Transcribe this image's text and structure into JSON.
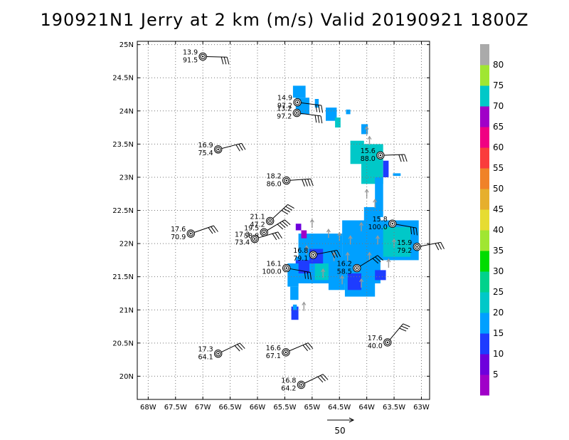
{
  "chart_data": {
    "type": "map",
    "title": "190921N1 Jerry at 2 km (m/s) Valid 20190921 1800Z",
    "x_axis": {
      "range": [
        -68.2,
        -62.85
      ],
      "ticks": [
        {
          "value": -68.0,
          "label": "68W"
        },
        {
          "value": -67.5,
          "label": "67.5W"
        },
        {
          "value": -67.0,
          "label": "67W"
        },
        {
          "value": -66.5,
          "label": "66.5W"
        },
        {
          "value": -66.0,
          "label": "66W"
        },
        {
          "value": -65.5,
          "label": "65.5W"
        },
        {
          "value": -65.0,
          "label": "65W"
        },
        {
          "value": -64.5,
          "label": "64.5W"
        },
        {
          "value": -64.0,
          "label": "64W"
        },
        {
          "value": -63.5,
          "label": "63.5W"
        },
        {
          "value": -63.0,
          "label": "63W"
        }
      ]
    },
    "y_axis": {
      "range": [
        19.65,
        25.05
      ],
      "ticks": [
        {
          "value": 20.0,
          "label": "20N"
        },
        {
          "value": 20.5,
          "label": "20.5N"
        },
        {
          "value": 21.0,
          "label": "21N"
        },
        {
          "value": 21.5,
          "label": "21.5N"
        },
        {
          "value": 22.0,
          "label": "22N"
        },
        {
          "value": 22.5,
          "label": "22.5N"
        },
        {
          "value": 23.0,
          "label": "23N"
        },
        {
          "value": 23.5,
          "label": "23.5N"
        },
        {
          "value": 24.0,
          "label": "24N"
        },
        {
          "value": 24.5,
          "label": "24.5N"
        },
        {
          "value": 25.0,
          "label": "25N"
        }
      ]
    },
    "grid": true,
    "colorbar": {
      "placement": "right",
      "levels": [
        {
          "label": "5",
          "color": "#a000c8"
        },
        {
          "label": "10",
          "color": "#6e00dc"
        },
        {
          "label": "15",
          "color": "#1e3cff"
        },
        {
          "label": "20",
          "color": "#00a0ff"
        },
        {
          "label": "25",
          "color": "#00c8c8"
        },
        {
          "label": "30",
          "color": "#00d28c"
        },
        {
          "label": "35",
          "color": "#00dc00"
        },
        {
          "label": "40",
          "color": "#a0e632"
        },
        {
          "label": "45",
          "color": "#e6dc32"
        },
        {
          "label": "50",
          "color": "#e6af2d"
        },
        {
          "label": "55",
          "color": "#f08228"
        },
        {
          "label": "60",
          "color": "#fa3c3c"
        },
        {
          "label": "65",
          "color": "#f00082"
        },
        {
          "label": "70",
          "color": "#a000c8"
        },
        {
          "label": "75",
          "color": "#00c8c8"
        },
        {
          "label": "80",
          "color": "#a0e632"
        },
        {
          "label": "",
          "color": "#aaaaaa"
        }
      ]
    },
    "stations": [
      {
        "lon": -67.0,
        "lat": 24.82,
        "speed": "13.9",
        "dir": "91.5",
        "label_pos": "left"
      },
      {
        "lon": -65.27,
        "lat": 24.13,
        "speed": "14.9",
        "dir": "97.2",
        "label_pos": "left"
      },
      {
        "lon": -65.28,
        "lat": 23.97,
        "speed": "13.2",
        "dir": "97.2",
        "label_pos": "left"
      },
      {
        "lon": -66.72,
        "lat": 23.42,
        "speed": "16.9",
        "dir": "75.4",
        "label_pos": "left"
      },
      {
        "lon": -63.75,
        "lat": 23.33,
        "speed": "15.6",
        "dir": "88.0",
        "label_pos": "left"
      },
      {
        "lon": -65.47,
        "lat": 22.95,
        "speed": "18.2",
        "dir": "86.0",
        "label_pos": "left"
      },
      {
        "lon": -65.77,
        "lat": 22.34,
        "speed": "21.1",
        "dir": "47.2",
        "label_pos": "left"
      },
      {
        "lon": -65.88,
        "lat": 22.17,
        "speed": "19.5",
        "dir": "58.8",
        "label_pos": "left"
      },
      {
        "lon": -66.05,
        "lat": 22.07,
        "speed": "17.3",
        "dir": "73.4",
        "label_pos": "left"
      },
      {
        "lon": -67.22,
        "lat": 22.15,
        "speed": "17.6",
        "dir": "70.9",
        "label_pos": "left"
      },
      {
        "lon": -63.53,
        "lat": 22.3,
        "speed": "15.8",
        "dir": "100.0",
        "label_pos": "left"
      },
      {
        "lon": -63.08,
        "lat": 21.95,
        "speed": "15.9",
        "dir": "79.2",
        "label_pos": "left"
      },
      {
        "lon": -64.98,
        "lat": 21.83,
        "speed": "16.8",
        "dir": "79.1",
        "label_pos": "left"
      },
      {
        "lon": -65.47,
        "lat": 21.63,
        "speed": "16.1",
        "dir": "100.0",
        "label_pos": "left"
      },
      {
        "lon": -64.18,
        "lat": 21.63,
        "speed": "16.2",
        "dir": "58.5",
        "label_pos": "left"
      },
      {
        "lon": -63.62,
        "lat": 20.51,
        "speed": "17.6",
        "dir": "40.0",
        "label_pos": "left"
      },
      {
        "lon": -66.72,
        "lat": 20.34,
        "speed": "17.3",
        "dir": "64.1",
        "label_pos": "left"
      },
      {
        "lon": -65.48,
        "lat": 20.36,
        "speed": "16.6",
        "dir": "67.1",
        "label_pos": "left"
      },
      {
        "lon": -65.2,
        "lat": 19.87,
        "speed": "16.8",
        "dir": "64.2",
        "label_pos": "left"
      }
    ],
    "reference_vector": {
      "label": "50"
    }
  }
}
